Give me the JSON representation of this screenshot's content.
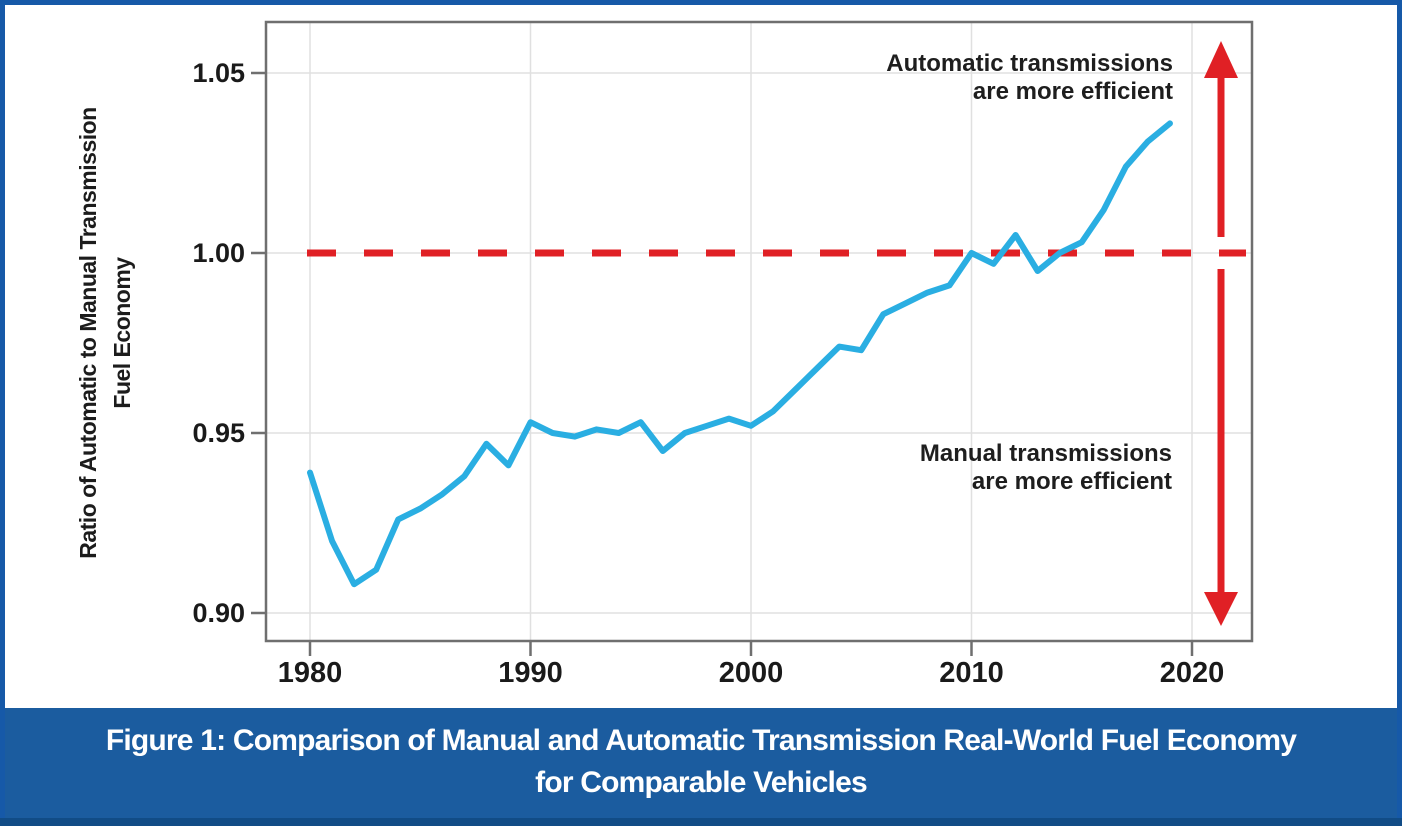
{
  "figure": {
    "caption_line1": "Figure 1: Comparison of Manual and Automatic Transmission Real-World Fuel Economy",
    "caption_line2": "for Comparable Vehicles"
  },
  "chart_data": {
    "type": "line",
    "title": "",
    "xlabel": "",
    "ylabel_line1": "Ratio of Automatic to Manual Transmission",
    "ylabel_line2": "Fuel Economy",
    "x_ticks": [
      1980,
      1990,
      2000,
      2010,
      2020
    ],
    "y_ticks": [
      1.05,
      1.0,
      0.95,
      0.9
    ],
    "xlim": [
      1978,
      2022.7
    ],
    "ylim": [
      0.892,
      1.064
    ],
    "grid": true,
    "legend_position": "none",
    "reference_line": 1.0,
    "reference_line_style": "dashed",
    "series": [
      {
        "name": "Automatic-to-manual transmission fuel economy ratio",
        "x": [
          1980,
          1981,
          1982,
          1983,
          1984,
          1985,
          1986,
          1987,
          1988,
          1989,
          1990,
          1991,
          1992,
          1993,
          1994,
          1995,
          1996,
          1997,
          1998,
          1999,
          2000,
          2001,
          2002,
          2003,
          2004,
          2005,
          2006,
          2007,
          2008,
          2009,
          2010,
          2011,
          2012,
          2013,
          2014,
          2015,
          2016,
          2017,
          2018,
          2019
        ],
        "values": [
          0.939,
          0.92,
          0.908,
          0.912,
          0.926,
          0.929,
          0.933,
          0.938,
          0.947,
          0.941,
          0.953,
          0.95,
          0.949,
          0.951,
          0.95,
          0.953,
          0.945,
          0.95,
          0.952,
          0.954,
          0.952,
          0.956,
          0.962,
          0.968,
          0.974,
          0.973,
          0.983,
          0.986,
          0.989,
          0.991,
          1.0,
          0.997,
          1.005,
          0.995,
          1.0,
          1.003,
          1.012,
          1.024,
          1.031,
          1.036
        ]
      }
    ],
    "annotations": [
      {
        "line1": "Automatic transmissions",
        "line2": "are more efficient",
        "position": "above-reference-line"
      },
      {
        "line1": "Manual transmissions",
        "line2": "are more efficient",
        "position": "below-reference-line"
      }
    ],
    "colors": {
      "line": "#2aaee2",
      "reference": "#e02025",
      "arrow": "#e02025",
      "grid": "#e0e0e0",
      "frame": "#6f6f6f",
      "caption_band": "#1b5c9f",
      "border": "#1659a8"
    }
  }
}
